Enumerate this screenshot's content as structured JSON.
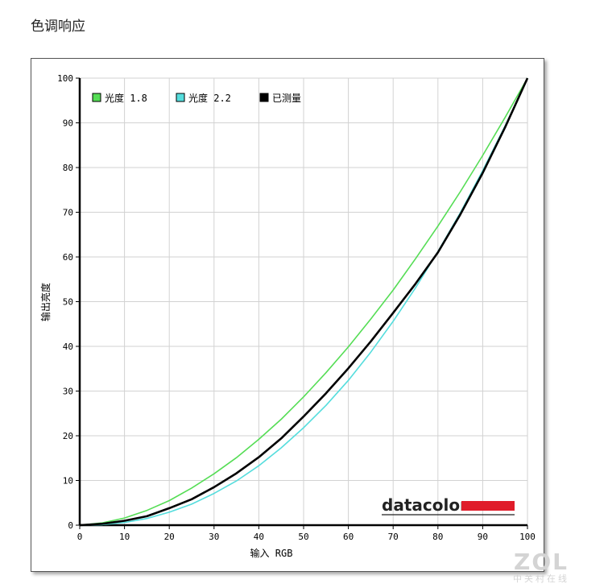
{
  "page": {
    "title": "色调响应"
  },
  "watermark": {
    "logo": "ZOL",
    "subtitle": "中关村在线"
  },
  "brand": {
    "name": "datacolor",
    "color": "#e01c2a"
  },
  "chart_data": {
    "type": "line",
    "title": "",
    "xlabel": "输入 RGB",
    "ylabel": "输出亮度",
    "xlim": [
      0,
      100
    ],
    "ylim": [
      0,
      100
    ],
    "xticks": [
      0,
      10,
      20,
      30,
      40,
      50,
      60,
      70,
      80,
      90,
      100
    ],
    "yticks": [
      0,
      10,
      20,
      30,
      40,
      50,
      60,
      70,
      80,
      90,
      100
    ],
    "grid": true,
    "legend_position": "top-left",
    "x": [
      0,
      5,
      10,
      15,
      20,
      25,
      30,
      35,
      40,
      45,
      50,
      55,
      60,
      65,
      70,
      75,
      80,
      85,
      90,
      95,
      100
    ],
    "series": [
      {
        "name": "光度 1.8",
        "color": "#55dd55",
        "values": [
          0,
          0.5,
          1.6,
          3.3,
          5.5,
          8.3,
          11.5,
          15.1,
          19.2,
          23.7,
          28.7,
          34.1,
          39.9,
          46.1,
          52.6,
          59.6,
          66.9,
          74.6,
          82.7,
          91.2,
          100
        ]
      },
      {
        "name": "光度 2.2",
        "color": "#55dddd",
        "values": [
          0,
          0.1,
          0.6,
          1.5,
          2.9,
          4.7,
          7.1,
          9.9,
          13.3,
          17.3,
          21.8,
          26.8,
          32.4,
          38.7,
          45.6,
          53.1,
          61.2,
          69.9,
          79.3,
          89.3,
          100
        ]
      },
      {
        "name": "已测量",
        "color": "#000000",
        "values": [
          0,
          0.3,
          1.0,
          2.0,
          3.8,
          5.8,
          8.5,
          11.6,
          15.2,
          19.4,
          24.3,
          29.5,
          35.1,
          41.1,
          47.5,
          54.0,
          61.0,
          69.5,
          78.8,
          89.0,
          100
        ]
      }
    ]
  }
}
